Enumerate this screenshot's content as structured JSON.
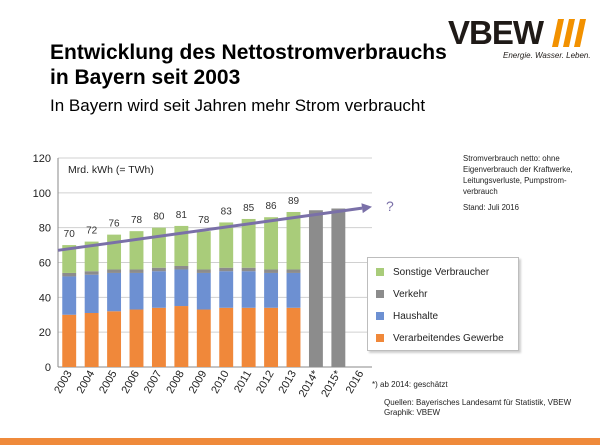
{
  "slide": {
    "title": "Entwicklung des Nettostromverbrauchs in Bayern seit 2003",
    "subtitle": "In Bayern wird seit Jahren mehr Strom verbraucht",
    "logo_text": "VBEW",
    "logo_tagline": "Energie. Wasser. Leben.",
    "note": "Stromverbrauch netto: ohne Eigenverbrauch der Kraftwerke, Leitungsverluste, Pumpstrom-verbrauch",
    "stand": "Stand: Juli 2016",
    "footnote": "*) ab 2014: geschätzt",
    "sources_line1": "Quellen: Bayerisches Landesamt für Statistik, VBEW",
    "sources_line2": "Graphik: VBEW",
    "band_color": "#ef8a3b"
  },
  "chart_data": {
    "type": "bar",
    "stacked": true,
    "unit_label": "Mrd. kWh (= TWh)",
    "categories": [
      "2003",
      "2004",
      "2005",
      "2006",
      "2007",
      "2008",
      "2009",
      "2010",
      "2011",
      "2012",
      "2013",
      "2014*",
      "2015*",
      "2016"
    ],
    "ylim": [
      0,
      120
    ],
    "yticks": [
      0,
      20,
      40,
      60,
      80,
      100,
      120
    ],
    "grid": true,
    "series": [
      {
        "name": "Verarbeitendes Gewerbe",
        "color": "#f0883a",
        "values": [
          30,
          31,
          32,
          33,
          34,
          35,
          33,
          34,
          34,
          34,
          34,
          null,
          null,
          null
        ]
      },
      {
        "name": "Haushalte",
        "color": "#6d90d2",
        "values": [
          22,
          22,
          22,
          21,
          21,
          21,
          21,
          21,
          21,
          20,
          20,
          null,
          null,
          null
        ]
      },
      {
        "name": "Verkehr",
        "color": "#8c8c8c",
        "values": [
          2,
          2,
          2,
          2,
          2,
          2,
          2,
          2,
          2,
          2,
          2,
          90,
          91,
          null
        ]
      },
      {
        "name": "Sonstige Verbraucher",
        "color": "#a9cc7a",
        "values": [
          16,
          17,
          20,
          22,
          23,
          23,
          22,
          26,
          28,
          30,
          33,
          null,
          null,
          null
        ]
      }
    ],
    "totals": [
      70,
      72,
      76,
      78,
      80,
      81,
      78,
      83,
      85,
      86,
      89,
      null,
      null,
      null
    ],
    "legend_order": [
      "Sonstige Verbraucher",
      "Verkehr",
      "Haushalte",
      "Verarbeitendes Gewerbe"
    ],
    "legend_placement": "right",
    "trend": {
      "from": {
        "x": "2003",
        "y": 67
      },
      "to": {
        "x": "2016",
        "y": 92
      },
      "color": "#7a70a8",
      "label": "?"
    }
  }
}
